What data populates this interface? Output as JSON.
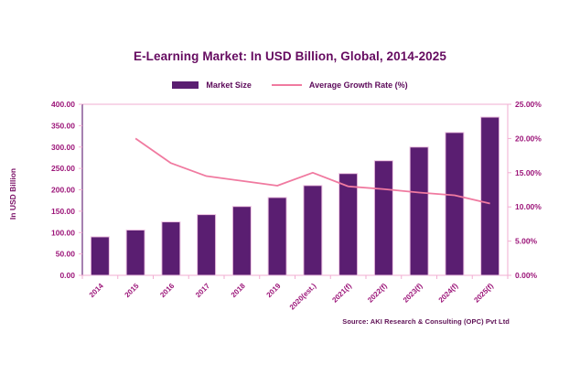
{
  "title": "E-Learning Market: In USD Billion, Global, 2014-2025",
  "legend": {
    "market_size_label": "Market Size",
    "growth_rate_label": "Average Growth Rate (%)"
  },
  "y_axis_title": "In USD Billion",
  "source_note": "Source: AKI Research & Consulting (OPC) Pvt Ltd",
  "colors": {
    "bar_fill": "#5a1e71",
    "bar_border": "#eec3e2",
    "line": "#f07aa0",
    "axis_tick_text": "#9c1579",
    "title_text": "#650b60",
    "left_axis_line": "#6b2d7d",
    "pink_axis_line": "#f2aed2",
    "source_text": "#5e1055"
  },
  "chart_data": {
    "type": "bar",
    "subtype": "bar+line combo, dual axis",
    "title": "E-Learning Market: In USD Billion, Global, 2014-2025",
    "categories": [
      "2014",
      "2015",
      "2016",
      "2017",
      "2018",
      "2019",
      "2020(est.)",
      "2021(f)",
      "2022(f)",
      "2023(f)",
      "2024(f)",
      "2025(f)"
    ],
    "series": [
      {
        "name": "Market Size",
        "type": "bar",
        "axis": "left",
        "values": [
          90,
          106,
          125,
          142,
          161,
          182,
          210,
          238,
          268,
          300,
          334,
          370
        ]
      },
      {
        "name": "Average Growth Rate (%)",
        "type": "line",
        "axis": "right",
        "values": [
          null,
          20.0,
          16.4,
          14.5,
          13.8,
          13.1,
          15.0,
          13.0,
          12.6,
          12.1,
          11.7,
          10.5
        ]
      }
    ],
    "left_axis": {
      "label": "In USD Billion",
      "min": 0,
      "max": 400,
      "step": 50,
      "tick_labels": [
        "0.00",
        "50.00",
        "100.00",
        "150.00",
        "200.00",
        "250.00",
        "300.00",
        "350.00",
        "400.00"
      ]
    },
    "right_axis": {
      "label": "Average Growth Rate (%)",
      "min": 0,
      "max": 25,
      "step": 5,
      "tick_labels": [
        "0.00%",
        "5.00%",
        "10.00%",
        "15.00%",
        "20.00%",
        "25.00%"
      ]
    },
    "grid": "top border only",
    "legend_position": "top center",
    "x_tick_label_rotation": 45
  }
}
